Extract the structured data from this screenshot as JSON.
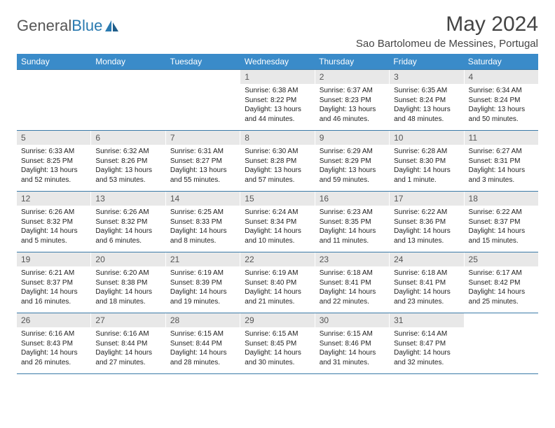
{
  "brand": {
    "part1": "General",
    "part2": "Blue"
  },
  "title": "May 2024",
  "location": "Sao Bartolomeu de Messines, Portugal",
  "colors": {
    "header_bg": "#3a8bc9",
    "row_divider": "#3a7aa8",
    "daynum_bg": "#e8e8e8",
    "text": "#222222",
    "brand_gray": "#555555",
    "brand_blue": "#2a7ab0"
  },
  "weekdays": [
    "Sunday",
    "Monday",
    "Tuesday",
    "Wednesday",
    "Thursday",
    "Friday",
    "Saturday"
  ],
  "weeks": [
    [
      null,
      null,
      null,
      {
        "n": "1",
        "sr": "Sunrise: 6:38 AM",
        "ss": "Sunset: 8:22 PM",
        "d1": "Daylight: 13 hours",
        "d2": "and 44 minutes."
      },
      {
        "n": "2",
        "sr": "Sunrise: 6:37 AM",
        "ss": "Sunset: 8:23 PM",
        "d1": "Daylight: 13 hours",
        "d2": "and 46 minutes."
      },
      {
        "n": "3",
        "sr": "Sunrise: 6:35 AM",
        "ss": "Sunset: 8:24 PM",
        "d1": "Daylight: 13 hours",
        "d2": "and 48 minutes."
      },
      {
        "n": "4",
        "sr": "Sunrise: 6:34 AM",
        "ss": "Sunset: 8:24 PM",
        "d1": "Daylight: 13 hours",
        "d2": "and 50 minutes."
      }
    ],
    [
      {
        "n": "5",
        "sr": "Sunrise: 6:33 AM",
        "ss": "Sunset: 8:25 PM",
        "d1": "Daylight: 13 hours",
        "d2": "and 52 minutes."
      },
      {
        "n": "6",
        "sr": "Sunrise: 6:32 AM",
        "ss": "Sunset: 8:26 PM",
        "d1": "Daylight: 13 hours",
        "d2": "and 53 minutes."
      },
      {
        "n": "7",
        "sr": "Sunrise: 6:31 AM",
        "ss": "Sunset: 8:27 PM",
        "d1": "Daylight: 13 hours",
        "d2": "and 55 minutes."
      },
      {
        "n": "8",
        "sr": "Sunrise: 6:30 AM",
        "ss": "Sunset: 8:28 PM",
        "d1": "Daylight: 13 hours",
        "d2": "and 57 minutes."
      },
      {
        "n": "9",
        "sr": "Sunrise: 6:29 AM",
        "ss": "Sunset: 8:29 PM",
        "d1": "Daylight: 13 hours",
        "d2": "and 59 minutes."
      },
      {
        "n": "10",
        "sr": "Sunrise: 6:28 AM",
        "ss": "Sunset: 8:30 PM",
        "d1": "Daylight: 14 hours",
        "d2": "and 1 minute."
      },
      {
        "n": "11",
        "sr": "Sunrise: 6:27 AM",
        "ss": "Sunset: 8:31 PM",
        "d1": "Daylight: 14 hours",
        "d2": "and 3 minutes."
      }
    ],
    [
      {
        "n": "12",
        "sr": "Sunrise: 6:26 AM",
        "ss": "Sunset: 8:32 PM",
        "d1": "Daylight: 14 hours",
        "d2": "and 5 minutes."
      },
      {
        "n": "13",
        "sr": "Sunrise: 6:26 AM",
        "ss": "Sunset: 8:32 PM",
        "d1": "Daylight: 14 hours",
        "d2": "and 6 minutes."
      },
      {
        "n": "14",
        "sr": "Sunrise: 6:25 AM",
        "ss": "Sunset: 8:33 PM",
        "d1": "Daylight: 14 hours",
        "d2": "and 8 minutes."
      },
      {
        "n": "15",
        "sr": "Sunrise: 6:24 AM",
        "ss": "Sunset: 8:34 PM",
        "d1": "Daylight: 14 hours",
        "d2": "and 10 minutes."
      },
      {
        "n": "16",
        "sr": "Sunrise: 6:23 AM",
        "ss": "Sunset: 8:35 PM",
        "d1": "Daylight: 14 hours",
        "d2": "and 11 minutes."
      },
      {
        "n": "17",
        "sr": "Sunrise: 6:22 AM",
        "ss": "Sunset: 8:36 PM",
        "d1": "Daylight: 14 hours",
        "d2": "and 13 minutes."
      },
      {
        "n": "18",
        "sr": "Sunrise: 6:22 AM",
        "ss": "Sunset: 8:37 PM",
        "d1": "Daylight: 14 hours",
        "d2": "and 15 minutes."
      }
    ],
    [
      {
        "n": "19",
        "sr": "Sunrise: 6:21 AM",
        "ss": "Sunset: 8:37 PM",
        "d1": "Daylight: 14 hours",
        "d2": "and 16 minutes."
      },
      {
        "n": "20",
        "sr": "Sunrise: 6:20 AM",
        "ss": "Sunset: 8:38 PM",
        "d1": "Daylight: 14 hours",
        "d2": "and 18 minutes."
      },
      {
        "n": "21",
        "sr": "Sunrise: 6:19 AM",
        "ss": "Sunset: 8:39 PM",
        "d1": "Daylight: 14 hours",
        "d2": "and 19 minutes."
      },
      {
        "n": "22",
        "sr": "Sunrise: 6:19 AM",
        "ss": "Sunset: 8:40 PM",
        "d1": "Daylight: 14 hours",
        "d2": "and 21 minutes."
      },
      {
        "n": "23",
        "sr": "Sunrise: 6:18 AM",
        "ss": "Sunset: 8:41 PM",
        "d1": "Daylight: 14 hours",
        "d2": "and 22 minutes."
      },
      {
        "n": "24",
        "sr": "Sunrise: 6:18 AM",
        "ss": "Sunset: 8:41 PM",
        "d1": "Daylight: 14 hours",
        "d2": "and 23 minutes."
      },
      {
        "n": "25",
        "sr": "Sunrise: 6:17 AM",
        "ss": "Sunset: 8:42 PM",
        "d1": "Daylight: 14 hours",
        "d2": "and 25 minutes."
      }
    ],
    [
      {
        "n": "26",
        "sr": "Sunrise: 6:16 AM",
        "ss": "Sunset: 8:43 PM",
        "d1": "Daylight: 14 hours",
        "d2": "and 26 minutes."
      },
      {
        "n": "27",
        "sr": "Sunrise: 6:16 AM",
        "ss": "Sunset: 8:44 PM",
        "d1": "Daylight: 14 hours",
        "d2": "and 27 minutes."
      },
      {
        "n": "28",
        "sr": "Sunrise: 6:15 AM",
        "ss": "Sunset: 8:44 PM",
        "d1": "Daylight: 14 hours",
        "d2": "and 28 minutes."
      },
      {
        "n": "29",
        "sr": "Sunrise: 6:15 AM",
        "ss": "Sunset: 8:45 PM",
        "d1": "Daylight: 14 hours",
        "d2": "and 30 minutes."
      },
      {
        "n": "30",
        "sr": "Sunrise: 6:15 AM",
        "ss": "Sunset: 8:46 PM",
        "d1": "Daylight: 14 hours",
        "d2": "and 31 minutes."
      },
      {
        "n": "31",
        "sr": "Sunrise: 6:14 AM",
        "ss": "Sunset: 8:47 PM",
        "d1": "Daylight: 14 hours",
        "d2": "and 32 minutes."
      },
      null
    ]
  ]
}
